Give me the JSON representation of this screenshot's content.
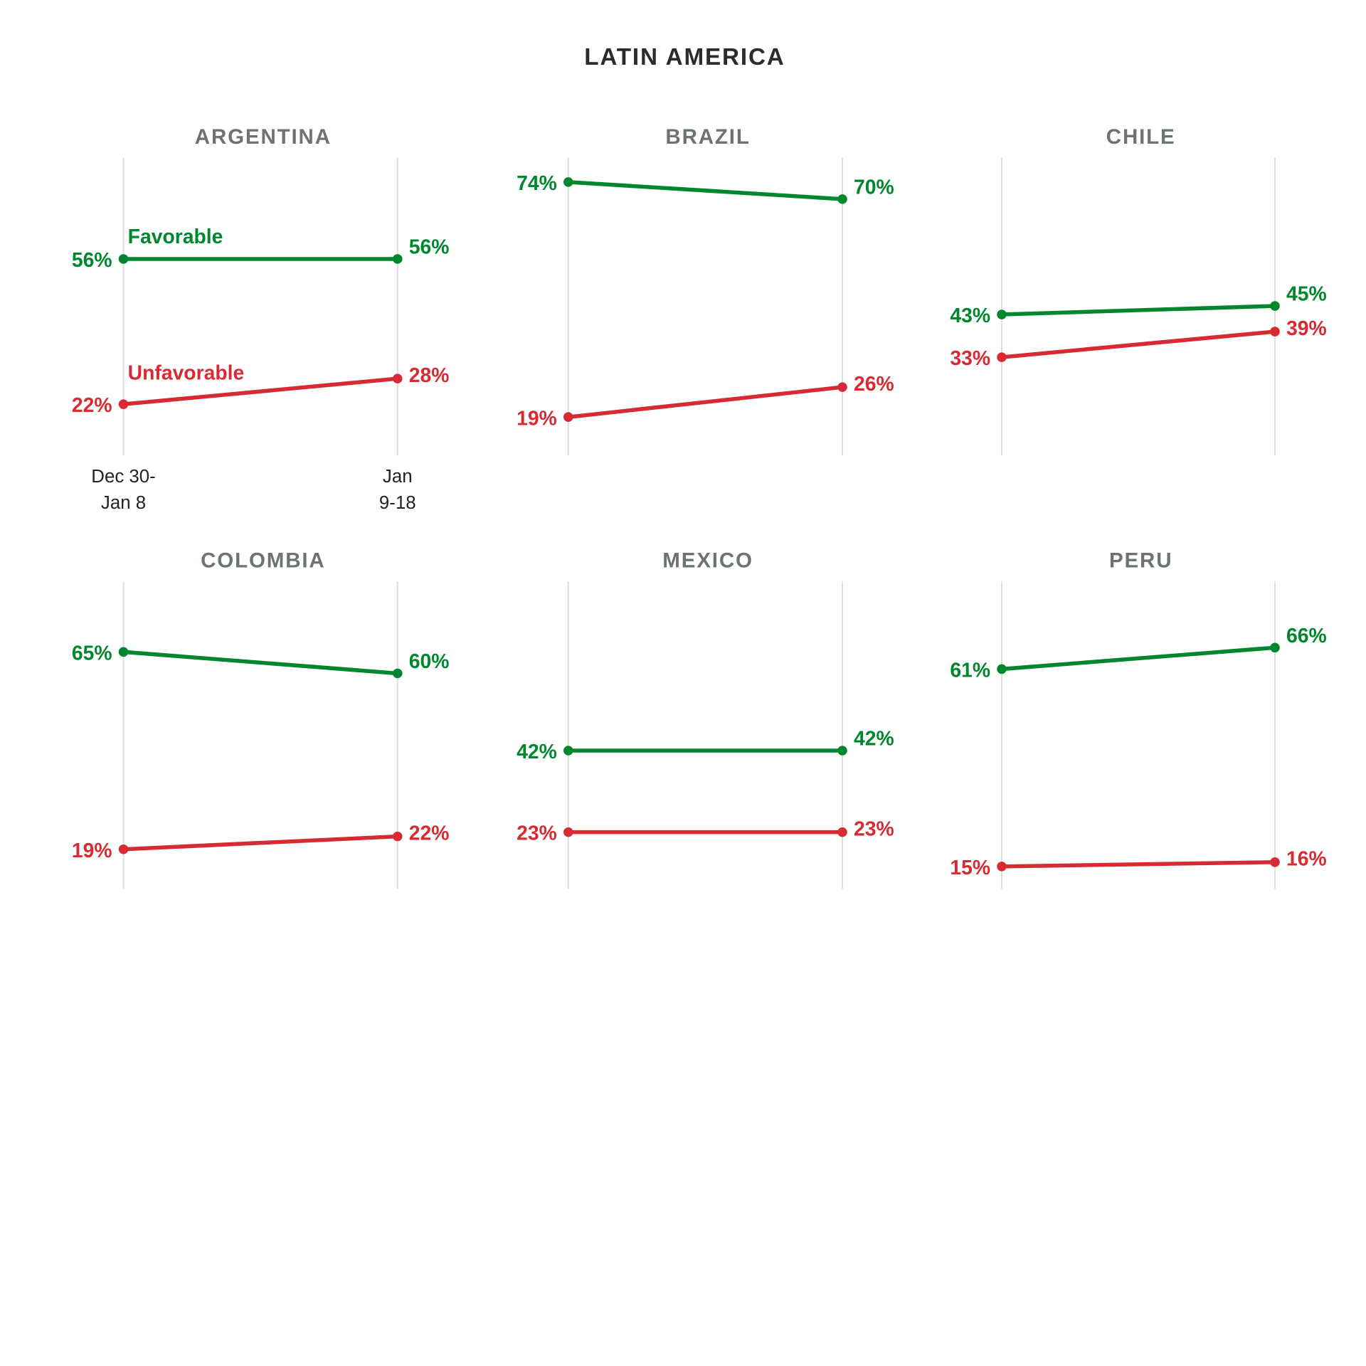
{
  "chart_data": {
    "type": "line",
    "title": "LATIN AMERICA",
    "categories": [
      "Dec 30-\nJan 8",
      "Jan\n9-18"
    ],
    "category_lines": [
      [
        "Dec 30-",
        "Jan 8"
      ],
      [
        "Jan",
        "9-18"
      ]
    ],
    "series_names": [
      "Favorable",
      "Unfavorable"
    ],
    "colors": {
      "Favorable": "#00872e",
      "Unfavorable": "#d82a33"
    },
    "unit": "%",
    "panels": [
      {
        "name": "ARGENTINA",
        "favorable": [
          56,
          56
        ],
        "unfavorable": [
          22,
          28
        ]
      },
      {
        "name": "BRAZIL",
        "favorable": [
          74,
          70
        ],
        "unfavorable": [
          19,
          26
        ]
      },
      {
        "name": "CHILE",
        "favorable": [
          43,
          45
        ],
        "unfavorable": [
          33,
          39
        ]
      },
      {
        "name": "COLOMBIA",
        "favorable": [
          65,
          60
        ],
        "unfavorable": [
          19,
          22
        ]
      },
      {
        "name": "MEXICO",
        "favorable": [
          42,
          42
        ],
        "unfavorable": [
          23,
          23
        ]
      },
      {
        "name": "PERU",
        "favorable": [
          61,
          66
        ],
        "unfavorable": [
          15,
          16
        ]
      }
    ]
  }
}
